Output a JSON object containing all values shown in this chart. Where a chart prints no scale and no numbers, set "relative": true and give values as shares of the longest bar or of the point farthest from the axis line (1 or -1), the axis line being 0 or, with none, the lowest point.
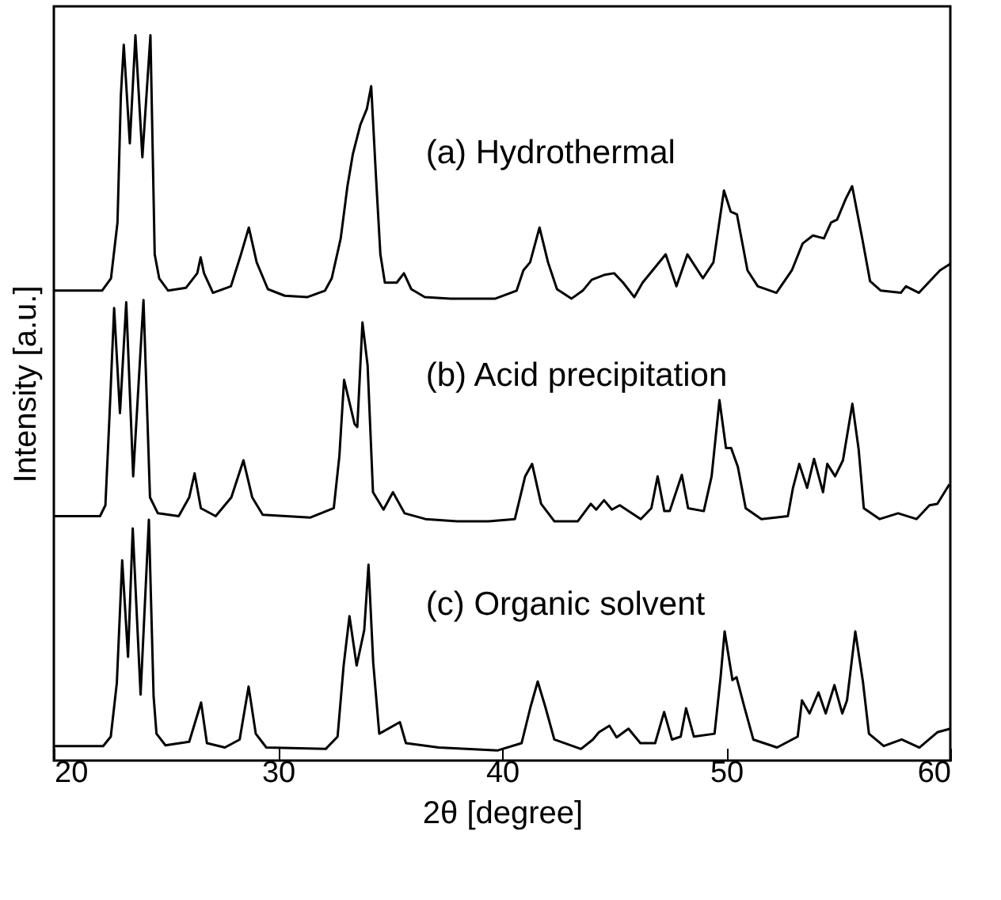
{
  "chart_data": {
    "type": "line",
    "relative": true,
    "xlabel": "2θ [degree]",
    "ylabel": "Intensity [a.u.]",
    "xlim": [
      20,
      60
    ],
    "xticks": [
      20,
      30,
      40,
      50,
      60
    ],
    "series": [
      {
        "name": "(a) Hydrothermal",
        "color": "#000000",
        "x": [
          20,
          22.15,
          22.55,
          22.84,
          22.99,
          23.12,
          23.39,
          23.64,
          23.95,
          24.31,
          24.5,
          24.7,
          25.1,
          25.9,
          26.4,
          26.55,
          26.7,
          27.1,
          27.9,
          28.35,
          28.7,
          29.05,
          29.55,
          30.3,
          31.3,
          32.1,
          32.4,
          32.8,
          33.1,
          33.34,
          33.68,
          33.97,
          34.16,
          34.37,
          34.57,
          34.77,
          35.3,
          35.62,
          35.95,
          36.55,
          37.7,
          39.7,
          40.65,
          40.95,
          41.25,
          41.67,
          42.05,
          42.45,
          43.1,
          43.6,
          44.0,
          44.6,
          45.0,
          45.4,
          45.9,
          46.27,
          47.3,
          47.78,
          48.27,
          48.96,
          49.43,
          49.9,
          50.2,
          50.48,
          50.95,
          51.41,
          52.24,
          52.93,
          53.41,
          53.87,
          54.36,
          54.68,
          54.95,
          55.34,
          55.62,
          56.07,
          56.42,
          56.9,
          57.79,
          58.02,
          58.6,
          59.54,
          60
        ],
        "values": [
          0.648,
          0.648,
          0.665,
          0.742,
          0.917,
          0.987,
          0.851,
          1.0,
          0.832,
          1.0,
          0.698,
          0.665,
          0.648,
          0.652,
          0.672,
          0.694,
          0.672,
          0.645,
          0.654,
          0.698,
          0.735,
          0.687,
          0.65,
          0.641,
          0.639,
          0.648,
          0.665,
          0.72,
          0.792,
          0.836,
          0.877,
          0.899,
          0.93,
          0.807,
          0.698,
          0.659,
          0.659,
          0.672,
          0.65,
          0.639,
          0.637,
          0.637,
          0.648,
          0.676,
          0.687,
          0.735,
          0.687,
          0.65,
          0.637,
          0.648,
          0.663,
          0.67,
          0.672,
          0.659,
          0.639,
          0.659,
          0.698,
          0.654,
          0.698,
          0.665,
          0.687,
          0.786,
          0.757,
          0.753,
          0.676,
          0.654,
          0.645,
          0.676,
          0.713,
          0.724,
          0.72,
          0.742,
          0.746,
          0.775,
          0.792,
          0.72,
          0.661,
          0.648,
          0.645,
          0.654,
          0.645,
          0.676,
          0.685
        ]
      },
      {
        "name": "(b) Acid precipitation",
        "color": "#000000",
        "x": [
          20,
          22.06,
          22.3,
          22.48,
          22.69,
          22.95,
          23.23,
          23.54,
          24.0,
          24.29,
          24.64,
          25.57,
          26.04,
          26.28,
          26.56,
          27.22,
          27.92,
          28.46,
          28.85,
          29.32,
          31.43,
          32.49,
          32.74,
          32.95,
          33.42,
          33.54,
          33.77,
          34.0,
          34.24,
          34.71,
          35.13,
          35.65,
          36.58,
          38.0,
          39.4,
          40.57,
          41.03,
          41.34,
          41.74,
          42.33,
          43.38,
          43.96,
          44.2,
          44.55,
          44.9,
          45.25,
          46.19,
          46.66,
          46.94,
          47.24,
          47.48,
          48.02,
          48.3,
          49.0,
          49.35,
          49.7,
          49.99,
          50.22,
          50.52,
          50.87,
          51.57,
          52.75,
          52.98,
          53.26,
          53.61,
          53.92,
          54.32,
          54.51,
          54.86,
          55.21,
          55.63,
          55.91,
          56.14,
          56.85,
          57.67,
          58.49,
          59.07,
          59.42,
          59.96
        ],
        "values": [
          0.337,
          0.337,
          0.352,
          0.473,
          0.624,
          0.479,
          0.632,
          0.392,
          0.635,
          0.363,
          0.341,
          0.337,
          0.363,
          0.396,
          0.348,
          0.337,
          0.363,
          0.414,
          0.363,
          0.339,
          0.335,
          0.348,
          0.42,
          0.525,
          0.464,
          0.46,
          0.604,
          0.545,
          0.37,
          0.346,
          0.37,
          0.341,
          0.333,
          0.33,
          0.33,
          0.333,
          0.392,
          0.409,
          0.354,
          0.33,
          0.33,
          0.354,
          0.346,
          0.359,
          0.346,
          0.352,
          0.333,
          0.348,
          0.392,
          0.344,
          0.344,
          0.394,
          0.348,
          0.344,
          0.392,
          0.497,
          0.431,
          0.431,
          0.405,
          0.348,
          0.333,
          0.337,
          0.376,
          0.409,
          0.376,
          0.416,
          0.37,
          0.409,
          0.392,
          0.414,
          0.492,
          0.429,
          0.348,
          0.333,
          0.341,
          0.333,
          0.352,
          0.354,
          0.381
        ]
      },
      {
        "name": "(c) Organic solvent",
        "color": "#000000",
        "x": [
          20,
          22.2,
          22.54,
          22.81,
          23.05,
          23.31,
          23.52,
          23.87,
          24.24,
          24.45,
          24.58,
          24.98,
          26.04,
          26.57,
          26.83,
          27.63,
          28.29,
          28.69,
          29.01,
          29.48,
          32.13,
          32.66,
          32.93,
          33.19,
          33.51,
          33.85,
          34.04,
          34.25,
          34.52,
          35.44,
          35.71,
          37.17,
          39.81,
          40.87,
          41.27,
          41.59,
          41.93,
          42.33,
          43.52,
          44.05,
          44.32,
          44.79,
          45.11,
          45.64,
          46.17,
          46.83,
          47.23,
          47.58,
          47.97,
          48.21,
          48.56,
          49.48,
          49.75,
          49.93,
          50.28,
          50.46,
          50.81,
          51.21,
          52.27,
          53.19,
          53.38,
          53.72,
          54.12,
          54.44,
          54.83,
          55.18,
          55.39,
          55.76,
          56.1,
          56.37,
          57.03,
          57.83,
          58.62,
          59.42,
          60
        ],
        "values": [
          0.02,
          0.02,
          0.033,
          0.107,
          0.276,
          0.143,
          0.32,
          0.091,
          0.332,
          0.089,
          0.037,
          0.021,
          0.026,
          0.08,
          0.024,
          0.018,
          0.029,
          0.102,
          0.037,
          0.018,
          0.016,
          0.033,
          0.131,
          0.199,
          0.131,
          0.18,
          0.27,
          0.135,
          0.037,
          0.053,
          0.024,
          0.018,
          0.014,
          0.024,
          0.074,
          0.109,
          0.074,
          0.029,
          0.016,
          0.029,
          0.039,
          0.048,
          0.032,
          0.044,
          0.024,
          0.024,
          0.067,
          0.029,
          0.033,
          0.072,
          0.033,
          0.037,
          0.115,
          0.178,
          0.111,
          0.115,
          0.074,
          0.029,
          0.018,
          0.033,
          0.083,
          0.065,
          0.094,
          0.065,
          0.104,
          0.065,
          0.083,
          0.178,
          0.109,
          0.037,
          0.02,
          0.029,
          0.018,
          0.039,
          0.044
        ]
      }
    ]
  }
}
